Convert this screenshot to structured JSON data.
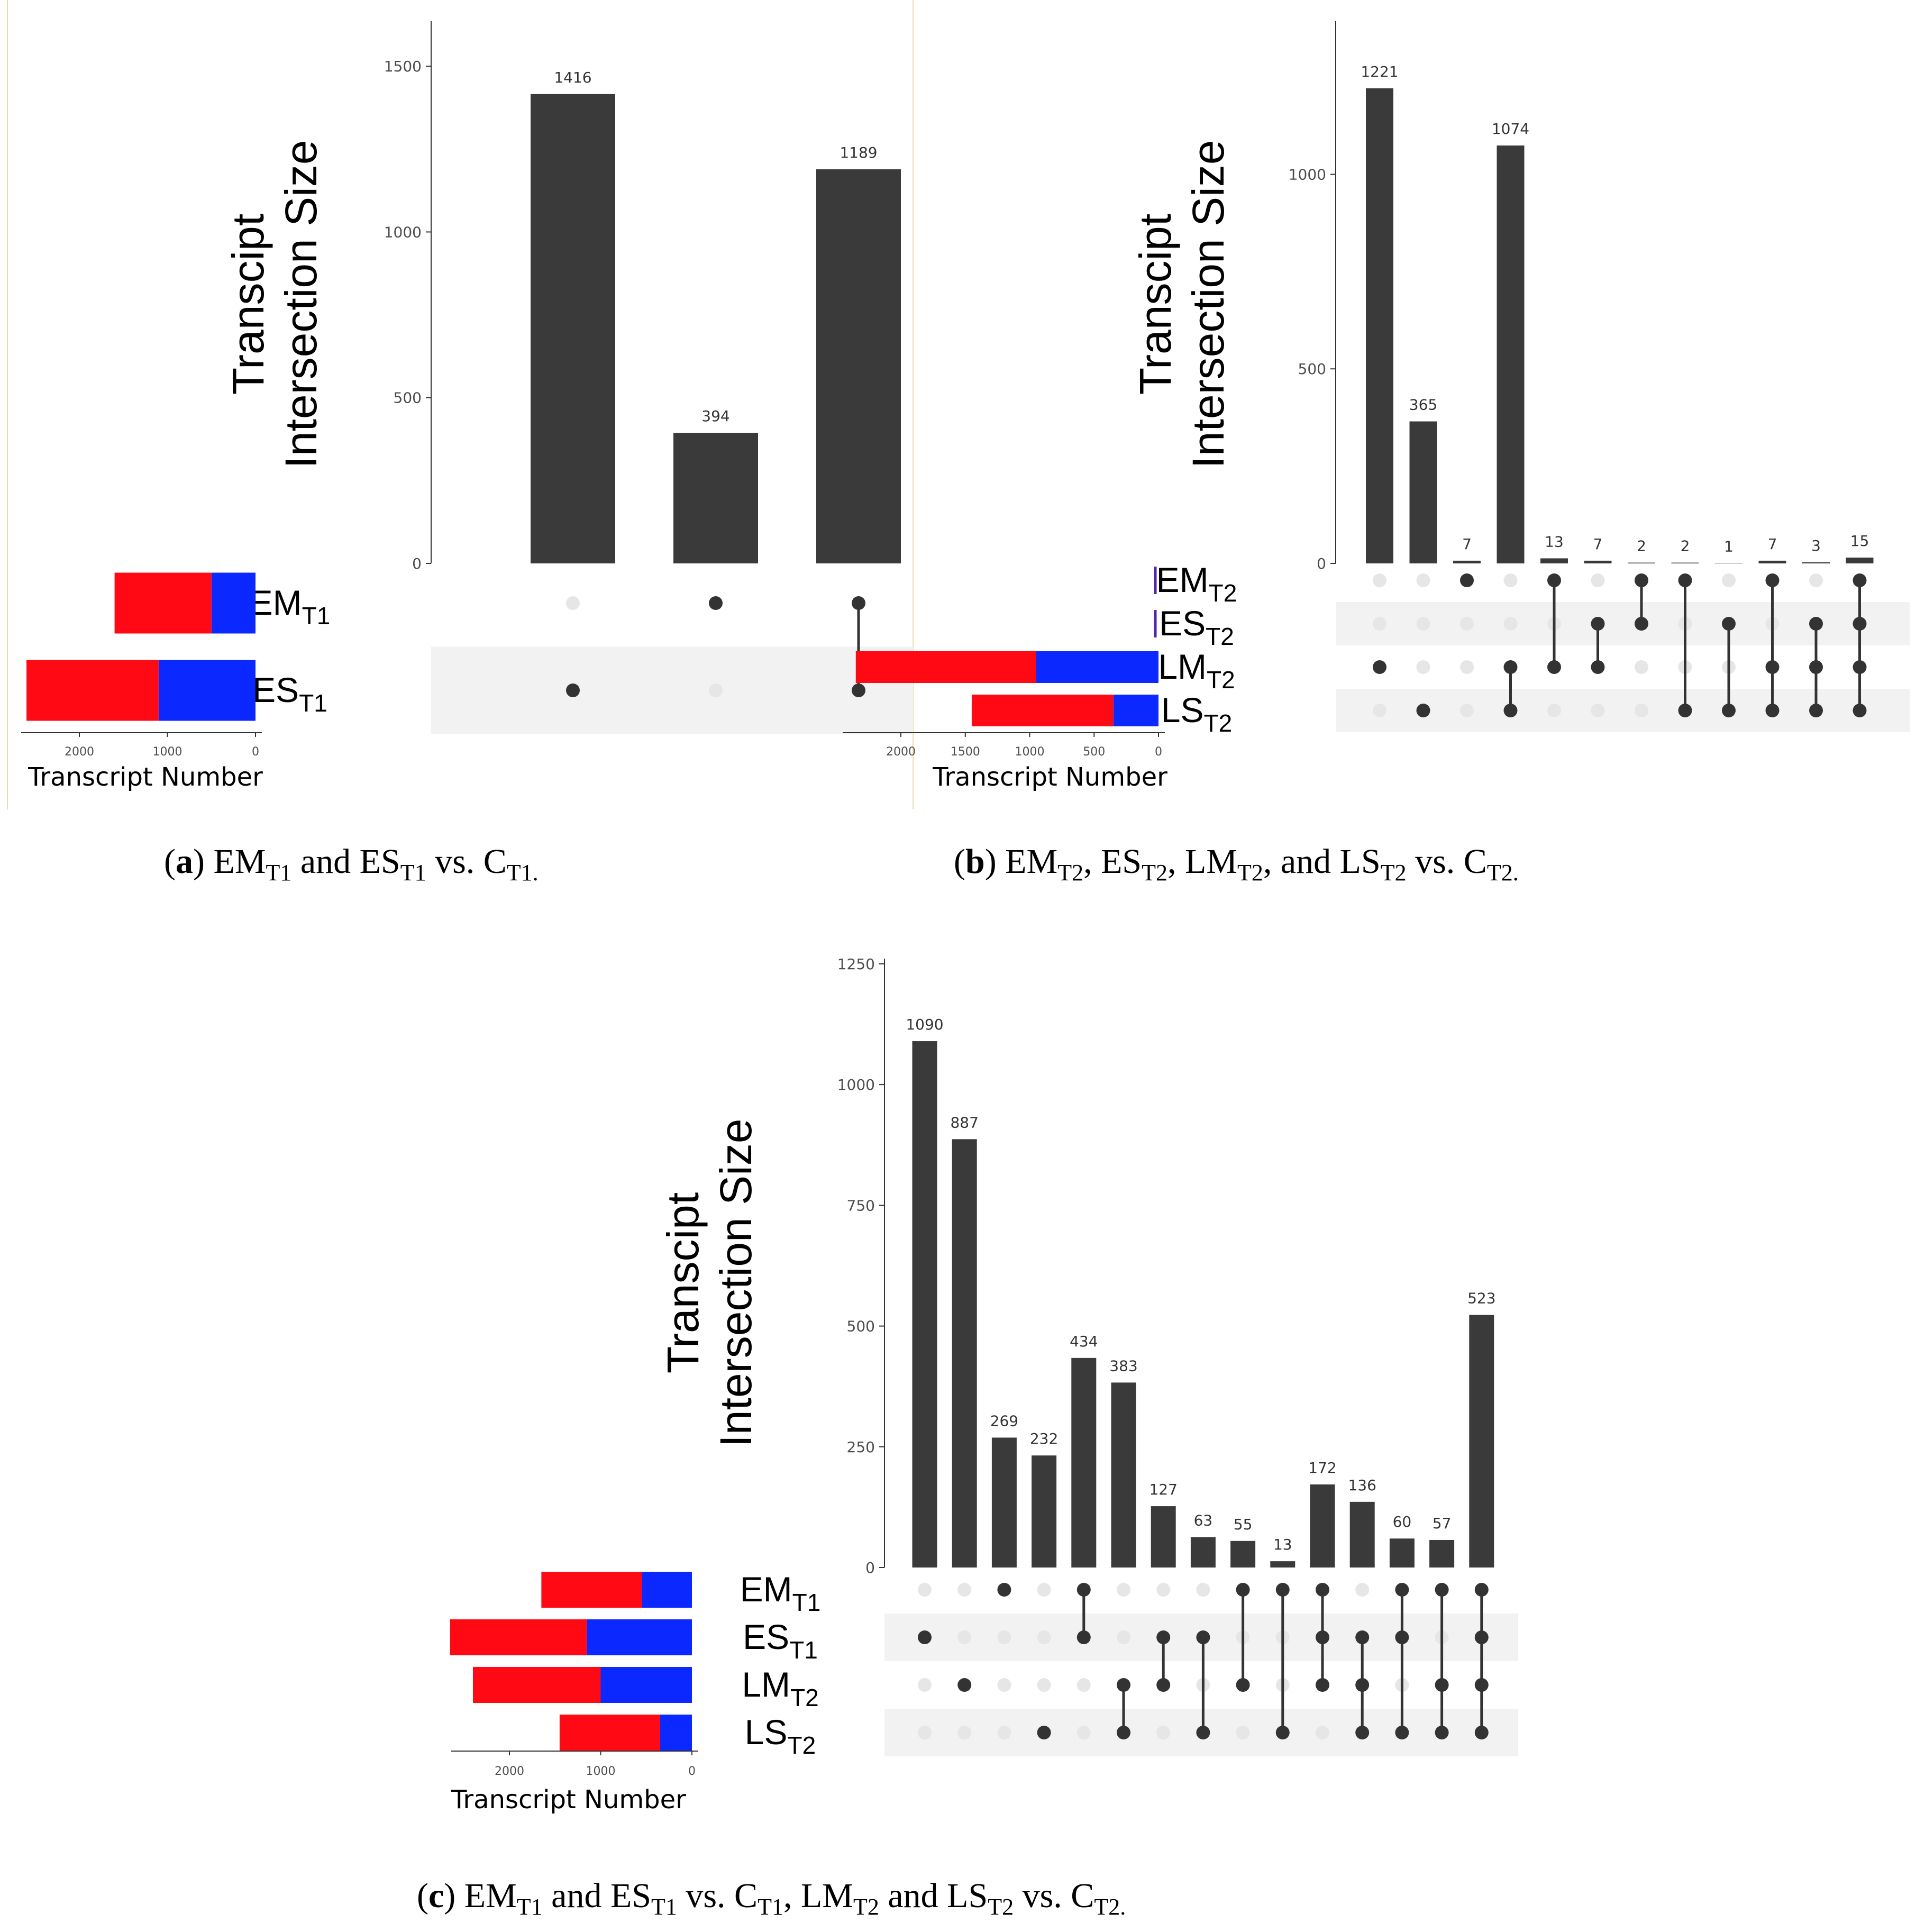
{
  "colors": {
    "bar": "#3a3a3a",
    "dot_on": "#333333",
    "dot_off": "#e6e6e6",
    "stripe": "#f2f2f2",
    "red": "#ff0a14",
    "blue": "#0a28ff",
    "divider": "#e8dcb0"
  },
  "common": {
    "y_title_line1": "Transcipt",
    "y_title_line2": "Intersection Size",
    "set_size_title": "Transcript Number"
  },
  "panels": [
    {
      "id": "a",
      "caption": {
        "label": "a",
        "parts": [
          [
            "text",
            ") EM"
          ],
          [
            "sub",
            "T1"
          ],
          [
            "text",
            " and ES"
          ],
          [
            "sub",
            "T1"
          ],
          [
            "text",
            " vs. C"
          ],
          [
            "sub",
            "T1."
          ]
        ]
      },
      "sets": [
        {
          "name": "EM",
          "sub": "T1"
        },
        {
          "name": "ES",
          "sub": "T1"
        }
      ],
      "set_sizes": [
        {
          "red": 1100,
          "blue": 500
        },
        {
          "red": 1500,
          "blue": 1100
        }
      ],
      "set_size_axis": {
        "ticks": [
          "2000",
          "1000",
          "0"
        ],
        "tick_values": [
          2000,
          1000,
          0
        ]
      }
    },
    {
      "id": "b",
      "caption": {
        "label": "b",
        "parts": [
          [
            "text",
            ") EM"
          ],
          [
            "sub",
            "T2"
          ],
          [
            "text",
            ", ES"
          ],
          [
            "sub",
            "T2"
          ],
          [
            "text",
            ", LM"
          ],
          [
            "sub",
            "T2"
          ],
          [
            "text",
            ", and LS"
          ],
          [
            "sub",
            "T2"
          ],
          [
            "text",
            " vs. C"
          ],
          [
            "sub",
            "T2."
          ]
        ]
      },
      "sets": [
        {
          "name": "EM",
          "sub": "T2"
        },
        {
          "name": "ES",
          "sub": "T2"
        },
        {
          "name": "LM",
          "sub": "T2"
        },
        {
          "name": "LS",
          "sub": "T2"
        }
      ],
      "set_sizes": [
        {
          "red": 0,
          "blue": 0,
          "line": true
        },
        {
          "red": 0,
          "blue": 0,
          "line": true
        },
        {
          "red": 1400,
          "blue": 950
        },
        {
          "red": 1100,
          "blue": 350
        }
      ],
      "set_size_axis": {
        "ticks": [
          "2000",
          "1500",
          "1000",
          "500",
          "0"
        ],
        "tick_values": [
          2000,
          1500,
          1000,
          500,
          0
        ]
      }
    },
    {
      "id": "c",
      "caption": {
        "label": "c",
        "parts": [
          [
            "text",
            ") EM"
          ],
          [
            "sub",
            "T1"
          ],
          [
            "text",
            " and ES"
          ],
          [
            "sub",
            "T1"
          ],
          [
            "text",
            " vs. C"
          ],
          [
            "sub",
            "T1"
          ],
          [
            "text",
            ", LM"
          ],
          [
            "sub",
            "T2"
          ],
          [
            "text",
            " and LS"
          ],
          [
            "sub",
            "T2"
          ],
          [
            "text",
            " vs. C"
          ],
          [
            "sub",
            "T2."
          ]
        ]
      },
      "sets": [
        {
          "name": "EM",
          "sub": "T1"
        },
        {
          "name": "ES",
          "sub": "T1"
        },
        {
          "name": "LM",
          "sub": "T2"
        },
        {
          "name": "LS",
          "sub": "T2"
        }
      ],
      "set_sizes": [
        {
          "red": 1100,
          "blue": 550
        },
        {
          "red": 1500,
          "blue": 1150
        },
        {
          "red": 1400,
          "blue": 1000
        },
        {
          "red": 1100,
          "blue": 350
        }
      ],
      "set_size_axis": {
        "ticks": [
          "2000",
          "1000",
          "0"
        ],
        "tick_values": [
          2000,
          1000,
          0
        ]
      }
    }
  ],
  "chart_data": [
    {
      "panel": "a",
      "type": "bar",
      "title": "",
      "ylabel": "Transcipt Intersection Size",
      "ylim": [
        0,
        1620
      ],
      "yticks": [
        0,
        500,
        1000,
        1500
      ],
      "values": [
        1416,
        394,
        1189
      ],
      "value_labels": [
        "1416",
        "394",
        "1189"
      ],
      "membership": [
        [
          1
        ],
        [
          0
        ],
        [
          0,
          1
        ]
      ],
      "set_size_xlabel": "Transcript Number"
    },
    {
      "panel": "b",
      "type": "bar",
      "title": "",
      "ylabel": "Transcipt Intersection Size",
      "ylim": [
        0,
        1380
      ],
      "yticks": [
        0,
        500,
        1000
      ],
      "values": [
        1221,
        365,
        7,
        1074,
        13,
        7,
        2,
        2,
        1,
        7,
        3,
        15
      ],
      "value_labels": [
        "1221",
        "365",
        "7",
        "1074",
        "13",
        "7",
        "2",
        "2",
        "1",
        "7",
        "3",
        "15"
      ],
      "membership": [
        [
          2
        ],
        [
          3
        ],
        [
          0
        ],
        [
          2,
          3
        ],
        [
          0,
          2
        ],
        [
          1,
          2
        ],
        [
          0,
          1
        ],
        [
          0,
          3
        ],
        [
          1,
          3
        ],
        [
          0,
          2,
          3
        ],
        [
          1,
          2,
          3
        ],
        [
          0,
          1,
          2,
          3
        ]
      ],
      "set_size_xlabel": "Transcript Number"
    },
    {
      "panel": "c",
      "type": "bar",
      "title": "",
      "ylabel": "Transcipt Intersection Size",
      "ylim": [
        0,
        1250
      ],
      "yticks": [
        0,
        250,
        500,
        750,
        1000,
        1250
      ],
      "values": [
        1090,
        887,
        269,
        232,
        434,
        383,
        127,
        63,
        55,
        13,
        172,
        136,
        60,
        57,
        523
      ],
      "value_labels": [
        "1090",
        "887",
        "269",
        "232",
        "434",
        "383",
        "127",
        "63",
        "55",
        "13",
        "172",
        "136",
        "60",
        "57",
        "523"
      ],
      "membership": [
        [
          1
        ],
        [
          2
        ],
        [
          0
        ],
        [
          3
        ],
        [
          0,
          1
        ],
        [
          2,
          3
        ],
        [
          1,
          2
        ],
        [
          1,
          3
        ],
        [
          0,
          2
        ],
        [
          0,
          3
        ],
        [
          0,
          1,
          2
        ],
        [
          1,
          2,
          3
        ],
        [
          0,
          1,
          3
        ],
        [
          0,
          2,
          3
        ],
        [
          0,
          1,
          2,
          3
        ]
      ],
      "set_size_xlabel": "Transcript Number"
    }
  ]
}
